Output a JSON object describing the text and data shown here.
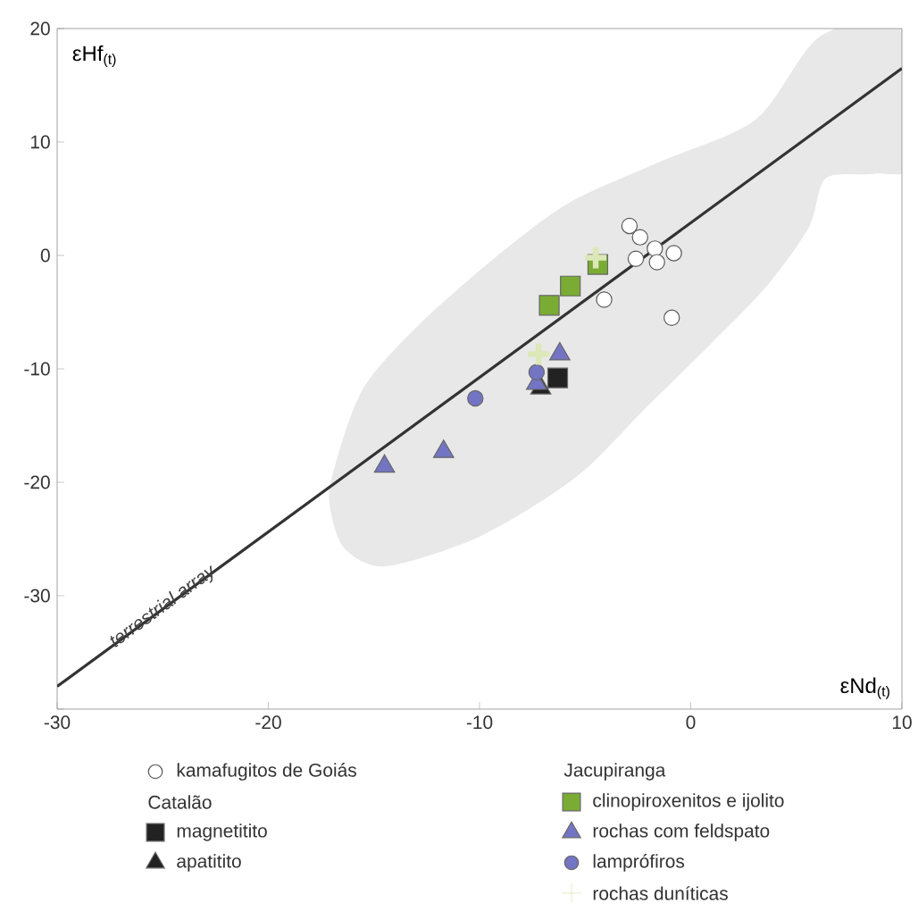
{
  "chart_data": {
    "type": "scatter",
    "xlabel": "εNd$_{(t)}$",
    "ylabel": "εHf$_{(t)}$",
    "xlim": [
      -30,
      10
    ],
    "ylim": [
      -40,
      20
    ],
    "xticks": [
      -30,
      -20,
      -10,
      0,
      10
    ],
    "yticks": [
      {
        "value": -40,
        "label": null
      },
      -30,
      -20,
      -10,
      0,
      10,
      20
    ],
    "grid": false,
    "legend": "bottom",
    "series": [
      {
        "name": "kamafugitos de Goiás",
        "color": "#ffffff",
        "marker": "circle",
        "x": [
          -2.9,
          -2.4,
          -1.7,
          -0.8,
          -2.6,
          -1.6,
          -4.1,
          -0.9
        ],
        "values": [
          2.6,
          1.6,
          0.6,
          0.2,
          -0.3,
          -0.6,
          -3.9,
          -5.5
        ]
      },
      {
        "name": "magnetitito",
        "color": "#222222",
        "marker": "square",
        "x": [
          -6.3
        ],
        "values": [
          -10.8
        ]
      },
      {
        "name": "apatitito",
        "color": "#222222",
        "marker": "triangle",
        "x": [
          -7.1
        ],
        "values": [
          -11.7
        ]
      },
      {
        "name": "clinopiroxenitos e ijolito",
        "color": "#7aac34",
        "marker": "square",
        "x": [
          -6.7,
          -5.7,
          -4.4
        ],
        "values": [
          -4.4,
          -2.7,
          -0.8
        ]
      },
      {
        "name": "rochas com feldspato",
        "color": "#7474c4",
        "marker": "triangle",
        "x": [
          -14.5,
          -11.7,
          -6.2,
          -7.3
        ],
        "values": [
          -18.6,
          -17.3,
          -8.7,
          -11.3
        ]
      },
      {
        "name": "lamprófiros",
        "color": "#7474c4",
        "marker": "circle",
        "x": [
          -10.2,
          -7.3
        ],
        "values": [
          -12.6,
          -10.3
        ]
      },
      {
        "name": "rochas duníticas",
        "color": "#dce8b8",
        "marker": "cross",
        "x": [
          -4.5,
          -7.2
        ],
        "values": [
          -0.2,
          -8.7
        ]
      },
      {
        "type": "line",
        "color": "#333333",
        "marker": "none",
        "line_style": "solid",
        "x": [
          -30,
          10
        ],
        "values": [
          -38,
          16.5
        ]
      }
    ],
    "annotations": [
      {
        "text": "terrestrial array",
        "x": -25,
        "y": -31
      },
      "Catalão",
      "Jacupiranga"
    ]
  }
}
